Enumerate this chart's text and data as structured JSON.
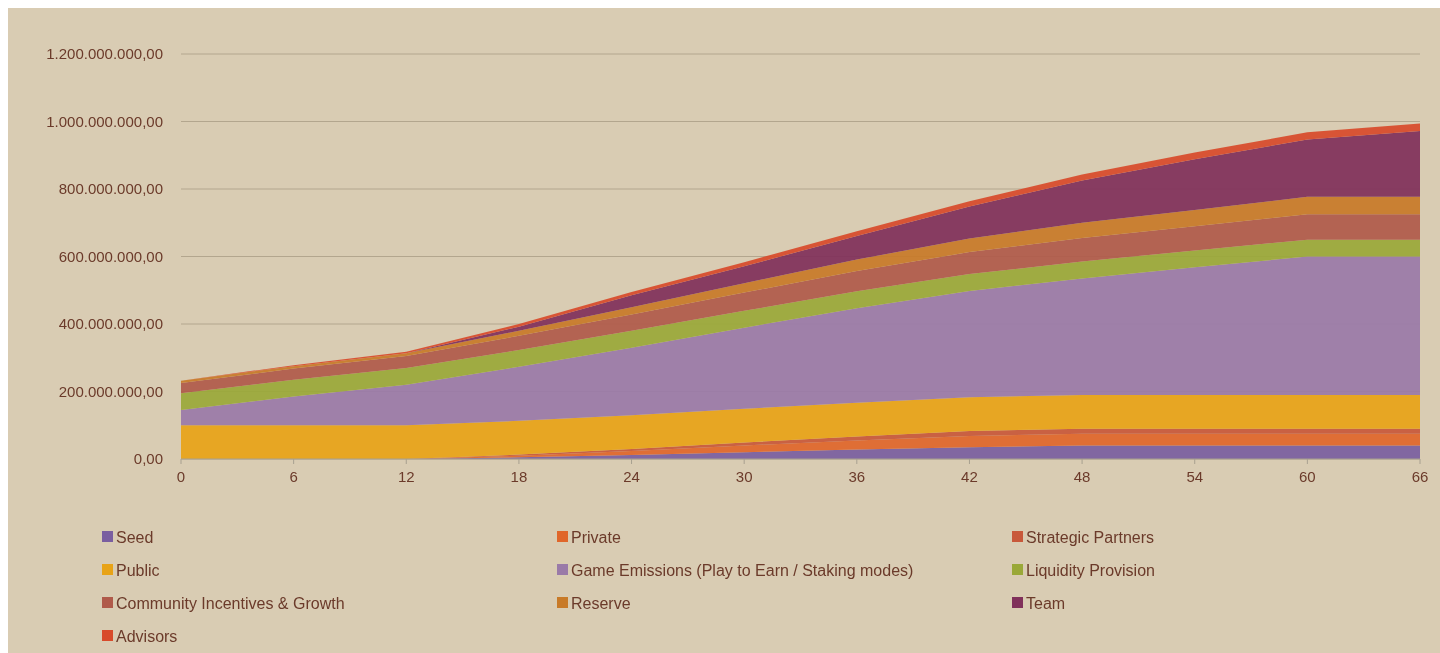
{
  "chart_data": {
    "type": "area",
    "stacked": true,
    "x": [
      0,
      6,
      12,
      18,
      24,
      30,
      36,
      42,
      48,
      54,
      60,
      66
    ],
    "xlim": [
      0,
      66
    ],
    "xticks": [
      0,
      6,
      12,
      18,
      24,
      30,
      36,
      42,
      48,
      54,
      60,
      66
    ],
    "ylim": [
      0,
      1200000000
    ],
    "yticks": [
      {
        "value": 0,
        "label": "0,00"
      },
      {
        "value": 200000000,
        "label": "200.000.000,00"
      },
      {
        "value": 400000000,
        "label": "400.000.000,00"
      },
      {
        "value": 600000000,
        "label": "600.000.000,00"
      },
      {
        "value": 800000000,
        "label": "800.000.000,00"
      },
      {
        "value": 1000000000,
        "label": "1.000.000.000,00"
      },
      {
        "value": 1200000000,
        "label": "1.200.000.000,00"
      }
    ],
    "grid": "y",
    "legend": "bottom",
    "series": [
      {
        "name": "Seed",
        "color": "#7a5ea0",
        "values": [
          0,
          0,
          0,
          5000000,
          12000000,
          20000000,
          28000000,
          35000000,
          40000000,
          40000000,
          40000000,
          40000000
        ]
      },
      {
        "name": "Private",
        "color": "#e0662a",
        "values": [
          0,
          0,
          0,
          5000000,
          12000000,
          20000000,
          27000000,
          33000000,
          35000000,
          35000000,
          35000000,
          35000000
        ]
      },
      {
        "name": "Strategic Partners",
        "color": "#c8583a",
        "values": [
          0,
          0,
          0,
          3000000,
          6000000,
          9000000,
          12000000,
          15000000,
          15000000,
          15000000,
          15000000,
          15000000
        ]
      },
      {
        "name": "Public",
        "color": "#e8a317",
        "values": [
          100000000,
          100000000,
          100000000,
          100000000,
          100000000,
          100000000,
          100000000,
          100000000,
          100000000,
          100000000,
          100000000,
          100000000
        ]
      },
      {
        "name": "Game Emissions (Play to Earn / Staking modes)",
        "color": "#9a7aa8",
        "values": [
          45000000,
          85000000,
          120000000,
          160000000,
          200000000,
          240000000,
          280000000,
          315000000,
          345000000,
          378000000,
          410000000,
          410000000
        ]
      },
      {
        "name": "Liquidity Provision",
        "color": "#9aa838",
        "values": [
          50000000,
          50000000,
          50000000,
          50000000,
          50000000,
          50000000,
          50000000,
          50000000,
          50000000,
          50000000,
          50000000,
          50000000
        ]
      },
      {
        "name": "Community Incentives & Growth",
        "color": "#b05a4a",
        "values": [
          30000000,
          33000000,
          35000000,
          42000000,
          48000000,
          54000000,
          60000000,
          65000000,
          70000000,
          72000000,
          75000000,
          75000000
        ]
      },
      {
        "name": "Reserve",
        "color": "#c87a28",
        "values": [
          7000000,
          7000000,
          8000000,
          15000000,
          22000000,
          28000000,
          34000000,
          40000000,
          45000000,
          48000000,
          52000000,
          52000000
        ]
      },
      {
        "name": "Team",
        "color": "#80305a",
        "values": [
          0,
          0,
          0,
          12000000,
          35000000,
          50000000,
          70000000,
          95000000,
          125000000,
          150000000,
          170000000,
          195000000
        ]
      },
      {
        "name": "Advisors",
        "color": "#d84a2a",
        "values": [
          0,
          3000000,
          5000000,
          8000000,
          10000000,
          12000000,
          14000000,
          16000000,
          18000000,
          20000000,
          21000000,
          22000000
        ]
      }
    ]
  }
}
